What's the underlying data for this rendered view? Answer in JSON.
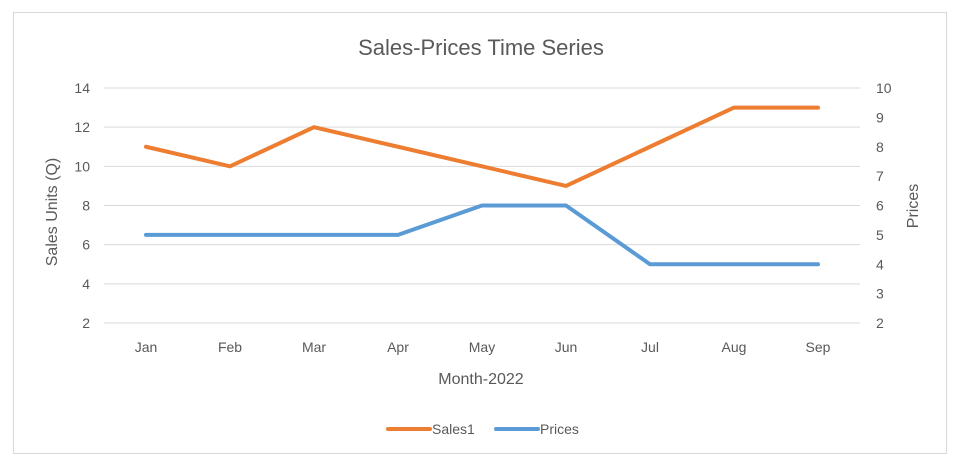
{
  "chart_data": {
    "type": "line",
    "title": "Sales-Prices Time Series",
    "xlabel": "Month-2022",
    "ylabel": "Sales Units (Q)",
    "y2label": "Prices",
    "categories": [
      "Jan",
      "Feb",
      "Mar",
      "Apr",
      "May",
      "Jun",
      "Jul",
      "Aug",
      "Sep"
    ],
    "ylim": [
      2,
      14
    ],
    "yticks": [
      2,
      4,
      6,
      8,
      10,
      12,
      14
    ],
    "y2lim": [
      2,
      10
    ],
    "y2ticks": [
      2,
      3,
      4,
      5,
      6,
      7,
      8,
      9,
      10
    ],
    "grid": true,
    "legend": "bottom",
    "series": [
      {
        "name": "Sales1",
        "axis": "left",
        "color": "#ed7d31",
        "values": [
          11,
          10,
          12,
          11,
          10,
          9,
          11,
          13,
          13
        ]
      },
      {
        "name": "Prices",
        "axis": "right",
        "color": "#5b9bd5",
        "values": [
          5,
          5,
          5,
          5,
          6,
          6,
          4,
          4,
          4
        ]
      }
    ]
  }
}
